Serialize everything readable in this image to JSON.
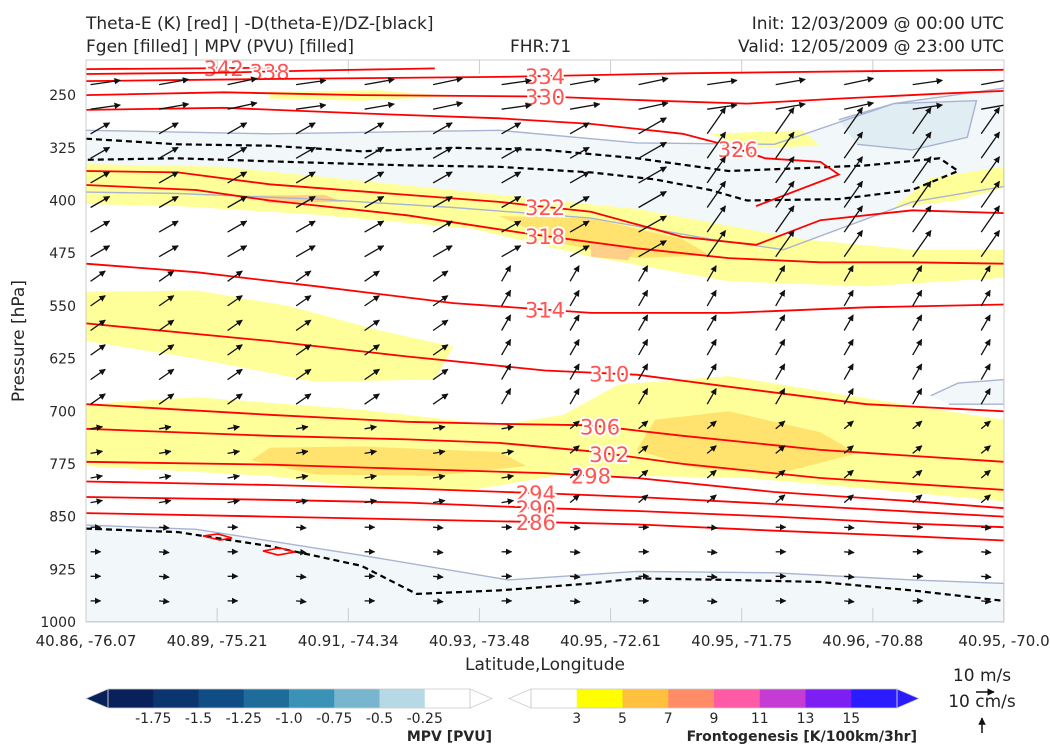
{
  "header": {
    "left_line1": "Theta-E (K) [red] | -D(theta-E)/DZ-[black]",
    "left_line2": "Fgen [filled] | MPV (PVU) [filled]",
    "center": "FHR:71",
    "right_line1": "Init: 12/03/2009 @ 00:00 UTC",
    "right_line2": "Valid: 12/05/2009 @ 23:00 UTC"
  },
  "colors": {
    "theta_e": "#ff0000",
    "theta_e_label": "#ff5555",
    "stability": "#000000",
    "mpv_contour": "#a8b4d2",
    "fgen_3": "#ffff99",
    "fgen_5": "#ffe36e",
    "fgen_7": "#ffcf8a",
    "mpv_light": "#f2f7f9",
    "mpv_mid": "#e0edf3"
  },
  "chart_data": {
    "type": "cross-section",
    "xlabel": "Latitude,Longitude",
    "ylabel": "Pressure [hPa]",
    "x_ticks": [
      "40.86, -76.07",
      "40.89, -75.21",
      "40.91, -74.34",
      "40.93, -73.48",
      "40.95, -72.61",
      "40.95, -71.75",
      "40.96, -70.88",
      "40.95, -70.0"
    ],
    "y_ticks": [
      250,
      325,
      400,
      475,
      550,
      625,
      700,
      775,
      850,
      925,
      1000
    ],
    "ylim": [
      1000,
      200
    ],
    "theta_e_contours": [
      {
        "value": 342,
        "label": "342",
        "points": [
          [
            0,
            213
          ],
          [
            0.12,
            212
          ],
          [
            0.2,
            211
          ]
        ]
      },
      {
        "value": 338,
        "label": "338",
        "points": [
          [
            0,
            220
          ],
          [
            0.15,
            218
          ],
          [
            0.25,
            215
          ],
          [
            0.38,
            212
          ]
        ]
      },
      {
        "value": 334,
        "label": "334",
        "points": [
          [
            0,
            230
          ],
          [
            0.2,
            227
          ],
          [
            0.45,
            224
          ],
          [
            0.65,
            219
          ],
          [
            0.85,
            216
          ],
          [
            1,
            214
          ]
        ]
      },
      {
        "value": 330,
        "label": "330",
        "points": [
          [
            0,
            250
          ],
          [
            0.15,
            246
          ],
          [
            0.3,
            250
          ],
          [
            0.5,
            252
          ],
          [
            0.62,
            258
          ],
          [
            0.72,
            262
          ],
          [
            0.82,
            255
          ],
          [
            0.93,
            248
          ],
          [
            1,
            244
          ]
        ]
      },
      {
        "value": 326,
        "label": "326",
        "points": [
          [
            0,
            271
          ],
          [
            0.15,
            268
          ],
          [
            0.3,
            276
          ],
          [
            0.45,
            283
          ],
          [
            0.55,
            291
          ],
          [
            0.65,
            305
          ],
          [
            0.7,
            322
          ],
          [
            0.74,
            340
          ],
          [
            0.8,
            345
          ],
          [
            0.82,
            363
          ],
          [
            0.73,
            408
          ]
        ]
      },
      {
        "value": 322,
        "label": "322",
        "points": [
          [
            0,
            358
          ],
          [
            0.1,
            360
          ],
          [
            0.2,
            377
          ],
          [
            0.35,
            392
          ],
          [
            0.45,
            402
          ],
          [
            0.55,
            416
          ],
          [
            0.65,
            452
          ],
          [
            0.73,
            463
          ],
          [
            0.8,
            428
          ],
          [
            0.9,
            414
          ],
          [
            1,
            418
          ]
        ]
      },
      {
        "value": 318,
        "label": "318",
        "points": [
          [
            0,
            378
          ],
          [
            0.12,
            385
          ],
          [
            0.2,
            400
          ],
          [
            0.35,
            421
          ],
          [
            0.48,
            447
          ],
          [
            0.6,
            468
          ],
          [
            0.7,
            482
          ],
          [
            0.8,
            488
          ],
          [
            0.9,
            488
          ],
          [
            1,
            490
          ]
        ]
      },
      {
        "value": 314,
        "label": "314",
        "points": [
          [
            0,
            490
          ],
          [
            0.12,
            502
          ],
          [
            0.25,
            522
          ],
          [
            0.4,
            546
          ],
          [
            0.55,
            560
          ],
          [
            0.7,
            560
          ],
          [
            0.85,
            552
          ],
          [
            1,
            548
          ]
        ]
      },
      {
        "value": 310,
        "label": "310",
        "points": [
          [
            0,
            575
          ],
          [
            0.2,
            600
          ],
          [
            0.35,
            622
          ],
          [
            0.5,
            642
          ],
          [
            0.6,
            648
          ],
          [
            0.7,
            665
          ],
          [
            0.85,
            690
          ],
          [
            1,
            700
          ]
        ]
      },
      {
        "value": 306,
        "label": "306",
        "points": [
          [
            0,
            690
          ],
          [
            0.2,
            705
          ],
          [
            0.35,
            715
          ],
          [
            0.45,
            718
          ],
          [
            0.55,
            720
          ],
          [
            0.65,
            735
          ],
          [
            0.8,
            755
          ],
          [
            1,
            772
          ]
        ]
      },
      {
        "value": 302,
        "label": "302",
        "points": [
          [
            0,
            725
          ],
          [
            0.2,
            735
          ],
          [
            0.35,
            740
          ],
          [
            0.45,
            745
          ],
          [
            0.55,
            757
          ],
          [
            0.65,
            775
          ],
          [
            0.8,
            795
          ],
          [
            1,
            812
          ]
        ]
      },
      {
        "value": 298,
        "label": "298",
        "points": [
          [
            0,
            772
          ],
          [
            0.2,
            776
          ],
          [
            0.35,
            782
          ],
          [
            0.5,
            788
          ],
          [
            0.6,
            795
          ],
          [
            0.75,
            815
          ],
          [
            0.9,
            828
          ],
          [
            1,
            838
          ]
        ]
      },
      {
        "value": 294,
        "label": "294",
        "points": [
          [
            0,
            800
          ],
          [
            0.2,
            805
          ],
          [
            0.35,
            810
          ],
          [
            0.5,
            817
          ],
          [
            0.6,
            822
          ],
          [
            0.75,
            832
          ],
          [
            0.9,
            843
          ],
          [
            1,
            850
          ]
        ]
      },
      {
        "value": 290,
        "label": "290",
        "points": [
          [
            0,
            822
          ],
          [
            0.2,
            826
          ],
          [
            0.35,
            830
          ],
          [
            0.5,
            838
          ],
          [
            0.6,
            842
          ],
          [
            0.75,
            850
          ],
          [
            0.9,
            860
          ],
          [
            1,
            865
          ]
        ]
      },
      {
        "value": 286,
        "label": "286",
        "points": [
          [
            0,
            845
          ],
          [
            0.2,
            850
          ],
          [
            0.35,
            854
          ],
          [
            0.5,
            858
          ],
          [
            0.6,
            861
          ],
          [
            0.75,
            870
          ],
          [
            0.9,
            878
          ],
          [
            1,
            884
          ]
        ]
      }
    ],
    "stability_contours": [
      [
        [
          0,
          312
        ],
        [
          0.1,
          320
        ],
        [
          0.2,
          322
        ],
        [
          0.3,
          330
        ],
        [
          0.4,
          325
        ],
        [
          0.5,
          328
        ],
        [
          0.6,
          340
        ],
        [
          0.7,
          358
        ],
        [
          0.78,
          354
        ],
        [
          0.85,
          350
        ],
        [
          0.93,
          340
        ],
        [
          0.95,
          358
        ],
        [
          0.9,
          385
        ],
        [
          0.82,
          398
        ],
        [
          0.72,
          400
        ],
        [
          0.68,
          385
        ],
        [
          0.62,
          370
        ],
        [
          0.55,
          360
        ],
        [
          0.45,
          352
        ],
        [
          0.35,
          350
        ],
        [
          0.22,
          345
        ],
        [
          0.1,
          340
        ],
        [
          0,
          342
        ]
      ],
      [
        [
          0,
          867
        ],
        [
          0.1,
          872
        ],
        [
          0.2,
          892
        ],
        [
          0.3,
          920
        ],
        [
          0.36,
          960
        ],
        [
          0.45,
          955
        ],
        [
          0.55,
          945
        ],
        [
          0.6,
          938
        ],
        [
          0.7,
          940
        ],
        [
          0.8,
          943
        ],
        [
          0.9,
          955
        ],
        [
          1,
          970
        ]
      ]
    ],
    "mpv_colorbar": {
      "label": "MPV [PVU]",
      "ticks": [
        "-1.75",
        "-1.5",
        "-1.25",
        "-1.0",
        "-0.75",
        "-0.5",
        "-0.25"
      ],
      "colors": [
        "#08215a",
        "#0b356f",
        "#104d85",
        "#1d6c99",
        "#3a93b6",
        "#78b6cf",
        "#b6dae5",
        "#ffffff"
      ]
    },
    "fgen_colorbar": {
      "label": "Frontogenesis [K/100km/3hr]",
      "ticks": [
        "3",
        "5",
        "7",
        "9",
        "11",
        "13",
        "15"
      ],
      "colors": [
        "#ffffff",
        "#ffff00",
        "#ffc13d",
        "#ff8c66",
        "#ff5aa5",
        "#c43cd4",
        "#7d1ff2",
        "#2a1cff"
      ]
    },
    "wind_scale": {
      "horizontal": "10 m/s",
      "vertical": "10 cm/s"
    }
  }
}
